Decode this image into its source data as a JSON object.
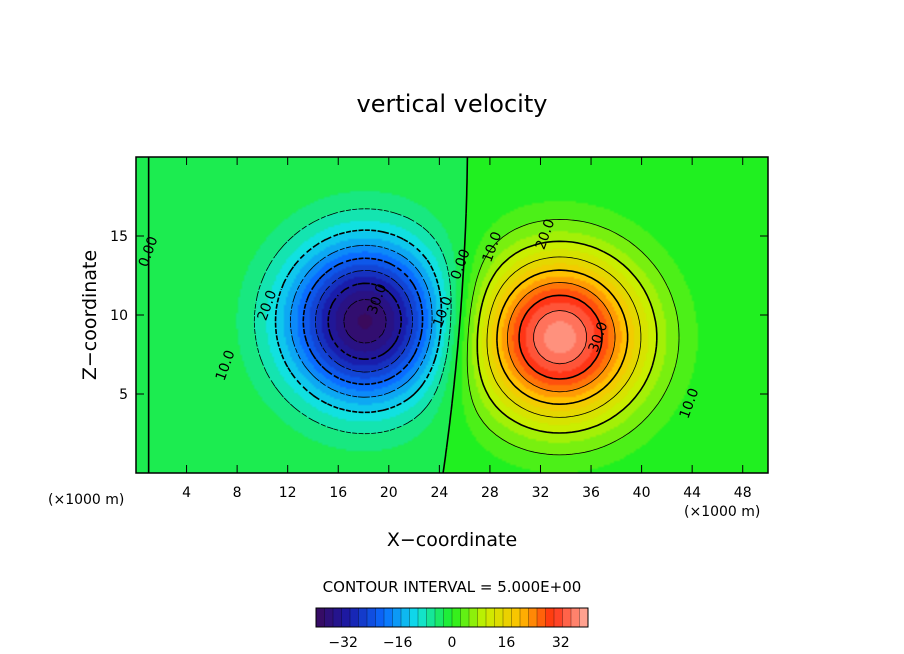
{
  "chart_data": {
    "type": "heatmap",
    "title": "vertical velocity",
    "xlabel": "X−coordinate",
    "ylabel": "Z−coordinate",
    "x_unit": "(×1000 m)",
    "y_unit": "(×1000 m)",
    "xlim": [
      0,
      50
    ],
    "ylim": [
      0,
      20
    ],
    "x_ticks": [
      "4",
      "8",
      "12",
      "16",
      "20",
      "24",
      "28",
      "32",
      "36",
      "40",
      "44",
      "48"
    ],
    "y_ticks": [
      "5",
      "10",
      "15"
    ],
    "contour_interval_text": "CONTOUR INTERVAL = 5.000E+00",
    "contour_interval": 5,
    "value_range": [
      -40,
      40
    ],
    "colorbar_ticks": [
      "−32",
      "−16",
      "0",
      "16",
      "32"
    ],
    "extrema": [
      {
        "name": "downdraft",
        "x": 18.2,
        "z": 9.6,
        "value": -38
      },
      {
        "name": "updraft",
        "x": 33.5,
        "z": 8.6,
        "value": 39
      }
    ],
    "contour_labels": [
      {
        "text": "0.00",
        "x": 1.0,
        "z": 14.0
      },
      {
        "text": "10.0",
        "x": 7.1,
        "z": 6.8
      },
      {
        "text": "20.0",
        "x": 10.4,
        "z": 10.6
      },
      {
        "text": "30.0",
        "x": 19.1,
        "z": 11.0
      },
      {
        "text": "10.0",
        "x": 24.3,
        "z": 10.2
      },
      {
        "text": "0.00",
        "x": 25.7,
        "z": 13.2
      },
      {
        "text": "10.0",
        "x": 28.2,
        "z": 14.3
      },
      {
        "text": "20.0",
        "x": 32.4,
        "z": 15.1
      },
      {
        "text": "30.0",
        "x": 36.6,
        "z": 8.6
      },
      {
        "text": "10.0",
        "x": 43.8,
        "z": 4.4
      }
    ]
  }
}
